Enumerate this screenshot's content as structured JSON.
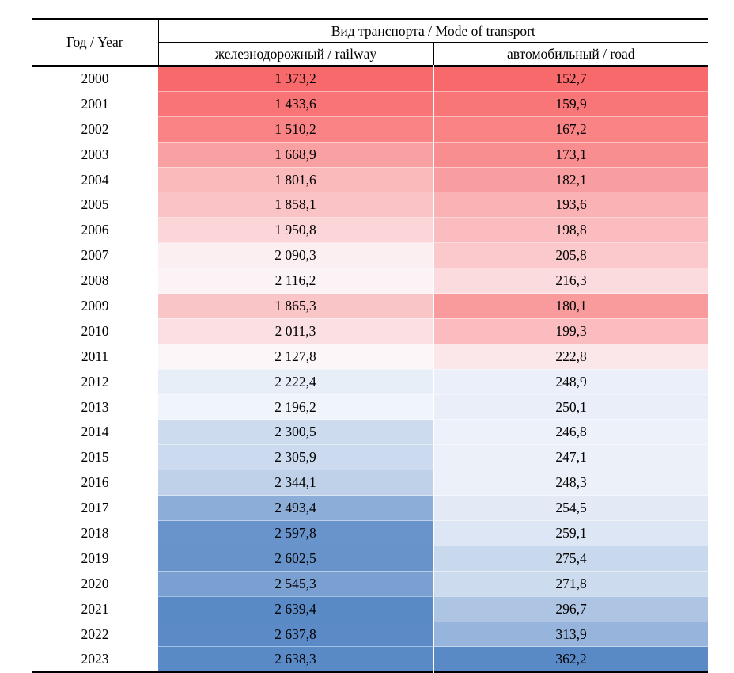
{
  "table": {
    "year_header": "Год / Year",
    "transport_header": "Вид транспорта / Mode of transport",
    "col_railway": "железнодорожный / railway",
    "col_road": "автомобильный / road"
  },
  "colorscale": {
    "min_color": "#F8696B",
    "mid_color": "#FCFCFF",
    "max_color": "#5A8AC6",
    "mode": "per-column 3-color scale: min=red, 50th percentile=white, max=blue"
  },
  "chart_data": {
    "type": "table",
    "columns": [
      "Год / Year",
      "железнодорожный / railway",
      "автомобильный / road"
    ],
    "rows": [
      [
        "2000",
        "1 373,2",
        "152,7"
      ],
      [
        "2001",
        "1 433,6",
        "159,9"
      ],
      [
        "2002",
        "1 510,2",
        "167,2"
      ],
      [
        "2003",
        "1 668,9",
        "173,1"
      ],
      [
        "2004",
        "1 801,6",
        "182,1"
      ],
      [
        "2005",
        "1 858,1",
        "193,6"
      ],
      [
        "2006",
        "1 950,8",
        "198,8"
      ],
      [
        "2007",
        "2 090,3",
        "205,8"
      ],
      [
        "2008",
        "2 116,2",
        "216,3"
      ],
      [
        "2009",
        "1 865,3",
        "180,1"
      ],
      [
        "2010",
        "2 011,3",
        "199,3"
      ],
      [
        "2011",
        "2 127,8",
        "222,8"
      ],
      [
        "2012",
        "2 222,4",
        "248,9"
      ],
      [
        "2013",
        "2 196,2",
        "250,1"
      ],
      [
        "2014",
        "2 300,5",
        "246,8"
      ],
      [
        "2015",
        "2 305,9",
        "247,1"
      ],
      [
        "2016",
        "2 344,1",
        "248,3"
      ],
      [
        "2017",
        "2 493,4",
        "254,5"
      ],
      [
        "2018",
        "2 597,8",
        "259,1"
      ],
      [
        "2019",
        "2 602,5",
        "275,4"
      ],
      [
        "2020",
        "2 545,3",
        "271,8"
      ],
      [
        "2021",
        "2 639,4",
        "296,7"
      ],
      [
        "2022",
        "2 637,8",
        "313,9"
      ],
      [
        "2023",
        "2 638,3",
        "362,2"
      ]
    ]
  }
}
